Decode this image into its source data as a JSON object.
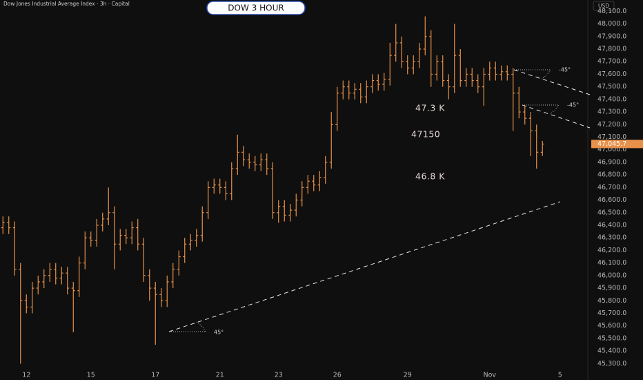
{
  "chart_data": {
    "type": "ohlc",
    "title": "Dow Jones Industrial Average Index · 3h · Capital",
    "label_box": "DOW 3 HOUR",
    "currency": "USD",
    "color": "#e8914a",
    "annotations": [
      "47.3 K",
      "47150",
      "46.8 K",
      "-45°",
      "-45°",
      "45°"
    ],
    "last_price": {
      "value": 47045.7,
      "label": "47,045.7"
    },
    "ylim": [
      45170,
      48190
    ],
    "yticks": [
      {
        "value": 45300,
        "label": "45,300.0"
      },
      {
        "value": 45400,
        "label": "45,400.0"
      },
      {
        "value": 45500,
        "label": "45,500.0"
      },
      {
        "value": 45600,
        "label": "45,600.0"
      },
      {
        "value": 45700,
        "label": "45,700.0"
      },
      {
        "value": 45800,
        "label": "45,800.0"
      },
      {
        "value": 45900,
        "label": "45,900.0"
      },
      {
        "value": 46000,
        "label": "46,000.0"
      },
      {
        "value": 46100,
        "label": "46,100.0"
      },
      {
        "value": 46200,
        "label": "46,200.0"
      },
      {
        "value": 46300,
        "label": "46,300.0"
      },
      {
        "value": 46400,
        "label": "46,400.0"
      },
      {
        "value": 46500,
        "label": "46,500.0"
      },
      {
        "value": 46600,
        "label": "46,600.0"
      },
      {
        "value": 46700,
        "label": "46,700.0"
      },
      {
        "value": 46800,
        "label": "46,800.0"
      },
      {
        "value": 46900,
        "label": "46,900.0"
      },
      {
        "value": 47000,
        "label": "47,000.0"
      },
      {
        "value": 47100,
        "label": "47,100.0"
      },
      {
        "value": 47200,
        "label": "47,200.0"
      },
      {
        "value": 47300,
        "label": "47,300.0"
      },
      {
        "value": 47400,
        "label": "47,400.0"
      },
      {
        "value": 47500,
        "label": "47,500.0"
      },
      {
        "value": 47600,
        "label": "47,600.0"
      },
      {
        "value": 47700,
        "label": "47,700.0"
      },
      {
        "value": 47800,
        "label": "47,800.0"
      },
      {
        "value": 47900,
        "label": "47,900.0"
      },
      {
        "value": 48000,
        "label": "48,000.0"
      },
      {
        "value": 48100,
        "label": "48,100.0"
      }
    ],
    "grid": false,
    "categories": [
      null,
      null,
      null,
      null,
      "12",
      null,
      null,
      null,
      null,
      null,
      null,
      null,
      null,
      null,
      null,
      "15",
      null,
      null,
      null,
      null,
      null,
      null,
      null,
      null,
      null,
      null,
      "17",
      null,
      null,
      null,
      null,
      null,
      null,
      null,
      null,
      null,
      null,
      "21",
      null,
      null,
      null,
      null,
      null,
      null,
      null,
      null,
      null,
      "23",
      null,
      null,
      null,
      null,
      null,
      null,
      null,
      null,
      null,
      "26",
      null,
      null,
      null,
      null,
      null,
      null,
      null,
      null,
      null,
      null,
      null,
      "29",
      null,
      null,
      null,
      null,
      null,
      null,
      null,
      null,
      null,
      null,
      null,
      null,
      null,
      "Nov",
      null,
      null,
      null,
      null,
      null,
      null,
      null,
      null,
      null,
      null,
      null,
      "5",
      null,
      null,
      null,
      null
    ],
    "open": [
      46380,
      46420,
      46380,
      46050,
      45800,
      45750,
      45900,
      45950,
      46000,
      46050,
      45980,
      46020,
      45900,
      45880,
      46100,
      46300,
      46280,
      46400,
      46450,
      46500,
      46250,
      46320,
      46300,
      46380,
      46250,
      46000,
      45900,
      45850,
      45800,
      45950,
      46050,
      46150,
      46250,
      46280,
      46320,
      46500,
      46700,
      46720,
      46700,
      46650,
      46850,
      46980,
      46920,
      46900,
      46880,
      46920,
      46850,
      46500,
      46550,
      46480,
      46520,
      46600,
      46700,
      46750,
      46720,
      46780,
      46900,
      47200,
      47450,
      47500,
      47450,
      47480,
      47420,
      47500,
      47550,
      47520,
      47560,
      47750,
      47850,
      47700,
      47650,
      47700,
      47800,
      47900,
      47600,
      47700,
      47550,
      47500,
      47750,
      47550,
      47600,
      47550,
      47500,
      47600,
      47650,
      47600,
      47620,
      47600,
      47450,
      47300,
      47250,
      47150,
      46980,
      null,
      null,
      null,
      null,
      null,
      null,
      null
    ],
    "high": [
      46470,
      46470,
      46430,
      46100,
      45850,
      45950,
      46000,
      46050,
      46100,
      46100,
      46070,
      46070,
      45950,
      46150,
      46350,
      46350,
      46450,
      46500,
      46700,
      46550,
      46370,
      46370,
      46430,
      46450,
      46300,
      46050,
      45950,
      45900,
      46000,
      46100,
      46200,
      46300,
      46330,
      46370,
      46550,
      46750,
      46770,
      46770,
      46750,
      46900,
      47120,
      47030,
      46970,
      46950,
      46970,
      46970,
      46900,
      46600,
      46600,
      46570,
      46650,
      46750,
      46800,
      46800,
      46830,
      46950,
      47300,
      47500,
      47550,
      47550,
      47530,
      47530,
      47550,
      47600,
      47600,
      47610,
      47850,
      48000,
      47900,
      47750,
      47750,
      47850,
      48060,
      47950,
      47750,
      47750,
      47600,
      48000,
      47800,
      47650,
      47650,
      47600,
      47650,
      47700,
      47700,
      47670,
      47670,
      47650,
      47500,
      47350,
      47300,
      47200,
      47070,
      null,
      null,
      null,
      null,
      null,
      null,
      null
    ],
    "low": [
      46330,
      46330,
      46000,
      45300,
      45700,
      45700,
      45850,
      45900,
      45950,
      45930,
      45930,
      45850,
      45550,
      45830,
      46050,
      46230,
      46230,
      46350,
      46400,
      46050,
      46200,
      46250,
      46250,
      46200,
      45950,
      45800,
      45450,
      45750,
      45750,
      45900,
      46000,
      46100,
      46200,
      46230,
      46270,
      46450,
      46650,
      46650,
      46600,
      46600,
      46800,
      46870,
      46850,
      46830,
      46830,
      46800,
      46450,
      46420,
      46430,
      46430,
      46470,
      46550,
      46650,
      46670,
      46670,
      46730,
      46850,
      47150,
      47400,
      47400,
      47400,
      47370,
      47370,
      47450,
      47470,
      47470,
      47510,
      47700,
      47650,
      47600,
      47600,
      47650,
      47750,
      47500,
      47550,
      47500,
      47400,
      47450,
      47500,
      47500,
      47500,
      47450,
      47350,
      47550,
      47550,
      47550,
      47550,
      47150,
      47250,
      47200,
      46950,
      46850,
      46950,
      null,
      null,
      null,
      null,
      null,
      null,
      null
    ],
    "close": [
      46420,
      46380,
      46050,
      45800,
      45750,
      45900,
      45950,
      46000,
      46050,
      45980,
      46020,
      45900,
      45880,
      46100,
      46300,
      46280,
      46400,
      46450,
      46500,
      46250,
      46320,
      46300,
      46380,
      46250,
      46000,
      45900,
      45850,
      45800,
      45950,
      46050,
      46150,
      46250,
      46280,
      46320,
      46500,
      46700,
      46720,
      46700,
      46650,
      46850,
      46980,
      46920,
      46900,
      46880,
      46920,
      46850,
      46500,
      46550,
      46480,
      46520,
      46600,
      46700,
      46750,
      46720,
      46780,
      46900,
      47200,
      47450,
      47500,
      47450,
      47480,
      47420,
      47500,
      47550,
      47520,
      47560,
      47750,
      47850,
      47700,
      47650,
      47700,
      47800,
      47900,
      47600,
      47700,
      47550,
      47500,
      47750,
      47550,
      47600,
      47550,
      47500,
      47600,
      47650,
      47600,
      47620,
      47600,
      47450,
      47300,
      47250,
      47150,
      46980,
      47045,
      null,
      null,
      null,
      null,
      null,
      null,
      null
    ]
  }
}
